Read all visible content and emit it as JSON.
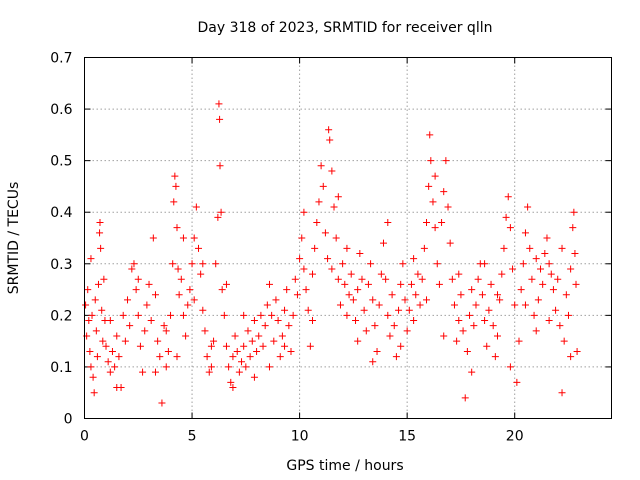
{
  "chart_data": {
    "type": "scatter",
    "title": "Day 318 of 2023, SRMTID for receiver qlln",
    "xlabel": "GPS time / hours",
    "ylabel": "SRMTID / TECUs",
    "xlim": [
      0,
      24.5
    ],
    "ylim": [
      0,
      0.7
    ],
    "x_ticks": [
      0,
      5,
      10,
      15,
      20
    ],
    "x_tick_labels": [
      "0",
      "5",
      "10",
      "15",
      "20"
    ],
    "y_ticks": [
      0,
      0.1,
      0.2,
      0.3,
      0.4,
      0.5,
      0.6,
      0.7
    ],
    "y_tick_labels": [
      "0",
      "0.1",
      "0.2",
      "0.3",
      "0.4",
      "0.5",
      "0.6",
      "0.7"
    ],
    "grid": true,
    "marker": "plus",
    "marker_color": "#ff0000",
    "series": [
      {
        "name": "SRMTID",
        "points": [
          [
            0.05,
            0.22
          ],
          [
            0.1,
            0.16
          ],
          [
            0.15,
            0.25
          ],
          [
            0.2,
            0.19
          ],
          [
            0.25,
            0.13
          ],
          [
            0.3,
            0.31
          ],
          [
            0.35,
            0.2
          ],
          [
            0.4,
            0.08
          ],
          [
            0.45,
            0.05
          ],
          [
            0.5,
            0.23
          ],
          [
            0.55,
            0.17
          ],
          [
            0.6,
            0.12
          ],
          [
            0.65,
            0.26
          ],
          [
            0.7,
            0.36
          ],
          [
            0.72,
            0.38
          ],
          [
            0.75,
            0.33
          ],
          [
            0.8,
            0.21
          ],
          [
            0.85,
            0.15
          ],
          [
            0.9,
            0.27
          ],
          [
            0.95,
            0.19
          ],
          [
            1.0,
            0.14
          ],
          [
            1.1,
            0.11
          ],
          [
            1.2,
            0.09
          ],
          [
            1.3,
            0.13
          ],
          [
            1.4,
            0.1
          ],
          [
            1.5,
            0.16
          ],
          [
            1.6,
            0.12
          ],
          [
            1.7,
            0.06
          ],
          [
            1.8,
            0.2
          ],
          [
            1.9,
            0.15
          ],
          [
            2.0,
            0.23
          ],
          [
            2.1,
            0.18
          ],
          [
            2.2,
            0.29
          ],
          [
            2.3,
            0.3
          ],
          [
            2.4,
            0.25
          ],
          [
            2.5,
            0.2
          ],
          [
            2.6,
            0.14
          ],
          [
            2.7,
            0.09
          ],
          [
            2.8,
            0.17
          ],
          [
            2.9,
            0.22
          ],
          [
            3.0,
            0.26
          ],
          [
            3.1,
            0.19
          ],
          [
            3.2,
            0.35
          ],
          [
            3.3,
            0.24
          ],
          [
            3.4,
            0.15
          ],
          [
            3.5,
            0.12
          ],
          [
            3.6,
            0.03
          ],
          [
            3.7,
            0.18
          ],
          [
            3.8,
            0.1
          ],
          [
            3.9,
            0.13
          ],
          [
            4.0,
            0.2
          ],
          [
            4.1,
            0.3
          ],
          [
            4.15,
            0.42
          ],
          [
            4.2,
            0.47
          ],
          [
            4.25,
            0.45
          ],
          [
            4.3,
            0.37
          ],
          [
            4.35,
            0.29
          ],
          [
            4.4,
            0.24
          ],
          [
            4.5,
            0.27
          ],
          [
            4.6,
            0.2
          ],
          [
            4.7,
            0.16
          ],
          [
            4.8,
            0.22
          ],
          [
            4.9,
            0.25
          ],
          [
            5.0,
            0.3
          ],
          [
            5.1,
            0.35
          ],
          [
            5.2,
            0.41
          ],
          [
            5.3,
            0.33
          ],
          [
            5.4,
            0.28
          ],
          [
            5.5,
            0.21
          ],
          [
            5.6,
            0.17
          ],
          [
            5.7,
            0.12
          ],
          [
            5.8,
            0.09
          ],
          [
            5.9,
            0.1
          ],
          [
            6.0,
            0.15
          ],
          [
            6.1,
            0.3
          ],
          [
            6.2,
            0.39
          ],
          [
            6.25,
            0.61
          ],
          [
            6.28,
            0.58
          ],
          [
            6.3,
            0.49
          ],
          [
            6.35,
            0.4
          ],
          [
            6.4,
            0.25
          ],
          [
            6.5,
            0.2
          ],
          [
            6.6,
            0.14
          ],
          [
            6.7,
            0.1
          ],
          [
            6.8,
            0.07
          ],
          [
            6.9,
            0.12
          ],
          [
            7.0,
            0.16
          ],
          [
            7.1,
            0.13
          ],
          [
            7.2,
            0.09
          ],
          [
            7.3,
            0.11
          ],
          [
            7.4,
            0.14
          ],
          [
            7.5,
            0.1
          ],
          [
            7.6,
            0.17
          ],
          [
            7.7,
            0.12
          ],
          [
            7.8,
            0.15
          ],
          [
            7.9,
            0.19
          ],
          [
            8.0,
            0.13
          ],
          [
            8.1,
            0.16
          ],
          [
            8.2,
            0.2
          ],
          [
            8.3,
            0.14
          ],
          [
            8.4,
            0.18
          ],
          [
            8.5,
            0.22
          ],
          [
            8.6,
            0.26
          ],
          [
            8.7,
            0.2
          ],
          [
            8.8,
            0.15
          ],
          [
            8.9,
            0.23
          ],
          [
            9.0,
            0.19
          ],
          [
            9.1,
            0.12
          ],
          [
            9.2,
            0.16
          ],
          [
            9.3,
            0.21
          ],
          [
            9.4,
            0.25
          ],
          [
            9.5,
            0.18
          ],
          [
            9.6,
            0.13
          ],
          [
            9.7,
            0.2
          ],
          [
            9.8,
            0.27
          ],
          [
            9.9,
            0.24
          ],
          [
            10.0,
            0.31
          ],
          [
            10.1,
            0.35
          ],
          [
            10.2,
            0.29
          ],
          [
            10.3,
            0.25
          ],
          [
            10.4,
            0.21
          ],
          [
            10.5,
            0.14
          ],
          [
            10.6,
            0.28
          ],
          [
            10.7,
            0.33
          ],
          [
            10.8,
            0.38
          ],
          [
            10.9,
            0.42
          ],
          [
            11.0,
            0.49
          ],
          [
            11.1,
            0.45
          ],
          [
            11.2,
            0.36
          ],
          [
            11.3,
            0.31
          ],
          [
            11.35,
            0.56
          ],
          [
            11.4,
            0.54
          ],
          [
            11.5,
            0.48
          ],
          [
            11.6,
            0.41
          ],
          [
            11.7,
            0.35
          ],
          [
            11.8,
            0.27
          ],
          [
            11.9,
            0.22
          ],
          [
            12.0,
            0.3
          ],
          [
            12.1,
            0.26
          ],
          [
            12.2,
            0.2
          ],
          [
            12.3,
            0.24
          ],
          [
            12.4,
            0.28
          ],
          [
            12.5,
            0.23
          ],
          [
            12.6,
            0.19
          ],
          [
            12.7,
            0.25
          ],
          [
            12.8,
            0.32
          ],
          [
            12.9,
            0.27
          ],
          [
            13.0,
            0.21
          ],
          [
            13.1,
            0.17
          ],
          [
            13.2,
            0.26
          ],
          [
            13.3,
            0.3
          ],
          [
            13.4,
            0.23
          ],
          [
            13.5,
            0.18
          ],
          [
            13.6,
            0.13
          ],
          [
            13.7,
            0.22
          ],
          [
            13.8,
            0.28
          ],
          [
            13.9,
            0.34
          ],
          [
            14.0,
            0.27
          ],
          [
            14.1,
            0.2
          ],
          [
            14.2,
            0.16
          ],
          [
            14.3,
            0.24
          ],
          [
            14.4,
            0.18
          ],
          [
            14.5,
            0.12
          ],
          [
            14.6,
            0.21
          ],
          [
            14.7,
            0.26
          ],
          [
            14.8,
            0.3
          ],
          [
            14.9,
            0.23
          ],
          [
            15.0,
            0.17
          ],
          [
            15.1,
            0.21
          ],
          [
            15.2,
            0.26
          ],
          [
            15.3,
            0.31
          ],
          [
            15.4,
            0.24
          ],
          [
            15.5,
            0.28
          ],
          [
            15.6,
            0.22
          ],
          [
            15.7,
            0.27
          ],
          [
            15.8,
            0.33
          ],
          [
            15.9,
            0.38
          ],
          [
            16.0,
            0.45
          ],
          [
            16.05,
            0.55
          ],
          [
            16.1,
            0.5
          ],
          [
            16.2,
            0.42
          ],
          [
            16.3,
            0.37
          ],
          [
            16.4,
            0.3
          ],
          [
            16.5,
            0.26
          ],
          [
            16.6,
            0.38
          ],
          [
            16.7,
            0.44
          ],
          [
            16.8,
            0.5
          ],
          [
            16.9,
            0.41
          ],
          [
            17.0,
            0.34
          ],
          [
            17.1,
            0.27
          ],
          [
            17.2,
            0.22
          ],
          [
            17.3,
            0.15
          ],
          [
            17.4,
            0.19
          ],
          [
            17.5,
            0.24
          ],
          [
            17.6,
            0.17
          ],
          [
            17.7,
            0.04
          ],
          [
            17.8,
            0.13
          ],
          [
            17.9,
            0.2
          ],
          [
            18.0,
            0.25
          ],
          [
            18.1,
            0.18
          ],
          [
            18.2,
            0.22
          ],
          [
            18.3,
            0.27
          ],
          [
            18.4,
            0.3
          ],
          [
            18.5,
            0.24
          ],
          [
            18.6,
            0.19
          ],
          [
            18.7,
            0.14
          ],
          [
            18.8,
            0.21
          ],
          [
            18.9,
            0.26
          ],
          [
            19.0,
            0.18
          ],
          [
            19.1,
            0.12
          ],
          [
            19.2,
            0.16
          ],
          [
            19.3,
            0.23
          ],
          [
            19.4,
            0.28
          ],
          [
            19.5,
            0.33
          ],
          [
            19.6,
            0.39
          ],
          [
            19.7,
            0.43
          ],
          [
            19.8,
            0.37
          ],
          [
            19.9,
            0.29
          ],
          [
            20.0,
            0.22
          ],
          [
            20.1,
            0.07
          ],
          [
            20.2,
            0.15
          ],
          [
            20.3,
            0.25
          ],
          [
            20.4,
            0.3
          ],
          [
            20.5,
            0.36
          ],
          [
            20.6,
            0.41
          ],
          [
            20.7,
            0.33
          ],
          [
            20.8,
            0.27
          ],
          [
            20.9,
            0.2
          ],
          [
            21.0,
            0.17
          ],
          [
            21.1,
            0.23
          ],
          [
            21.2,
            0.29
          ],
          [
            21.3,
            0.26
          ],
          [
            21.4,
            0.32
          ],
          [
            21.5,
            0.35
          ],
          [
            21.6,
            0.3
          ],
          [
            21.7,
            0.28
          ],
          [
            21.8,
            0.25
          ],
          [
            21.9,
            0.21
          ],
          [
            22.0,
            0.27
          ],
          [
            22.1,
            0.18
          ],
          [
            22.2,
            0.05
          ],
          [
            22.3,
            0.15
          ],
          [
            22.4,
            0.24
          ],
          [
            22.5,
            0.2
          ],
          [
            22.6,
            0.29
          ],
          [
            22.7,
            0.37
          ],
          [
            22.75,
            0.4
          ],
          [
            22.8,
            0.32
          ],
          [
            22.85,
            0.26
          ],
          [
            22.9,
            0.13
          ],
          [
            0.3,
            0.1
          ],
          [
            1.2,
            0.19
          ],
          [
            1.5,
            0.06
          ],
          [
            2.5,
            0.27
          ],
          [
            3.3,
            0.09
          ],
          [
            3.8,
            0.17
          ],
          [
            4.3,
            0.12
          ],
          [
            4.6,
            0.35
          ],
          [
            5.1,
            0.23
          ],
          [
            5.5,
            0.3
          ],
          [
            5.9,
            0.14
          ],
          [
            6.6,
            0.26
          ],
          [
            6.9,
            0.06
          ],
          [
            7.4,
            0.2
          ],
          [
            7.9,
            0.08
          ],
          [
            8.6,
            0.1
          ],
          [
            9.3,
            0.14
          ],
          [
            10.2,
            0.4
          ],
          [
            10.6,
            0.19
          ],
          [
            11.5,
            0.29
          ],
          [
            11.8,
            0.43
          ],
          [
            12.2,
            0.33
          ],
          [
            12.7,
            0.15
          ],
          [
            13.4,
            0.11
          ],
          [
            14.1,
            0.38
          ],
          [
            14.7,
            0.14
          ],
          [
            15.3,
            0.19
          ],
          [
            15.9,
            0.23
          ],
          [
            16.3,
            0.47
          ],
          [
            16.7,
            0.16
          ],
          [
            17.4,
            0.28
          ],
          [
            18.0,
            0.09
          ],
          [
            18.6,
            0.3
          ],
          [
            19.2,
            0.24
          ],
          [
            19.8,
            0.1
          ],
          [
            20.5,
            0.22
          ],
          [
            21.0,
            0.31
          ],
          [
            21.6,
            0.19
          ],
          [
            22.2,
            0.33
          ],
          [
            22.6,
            0.12
          ]
        ]
      }
    ]
  }
}
